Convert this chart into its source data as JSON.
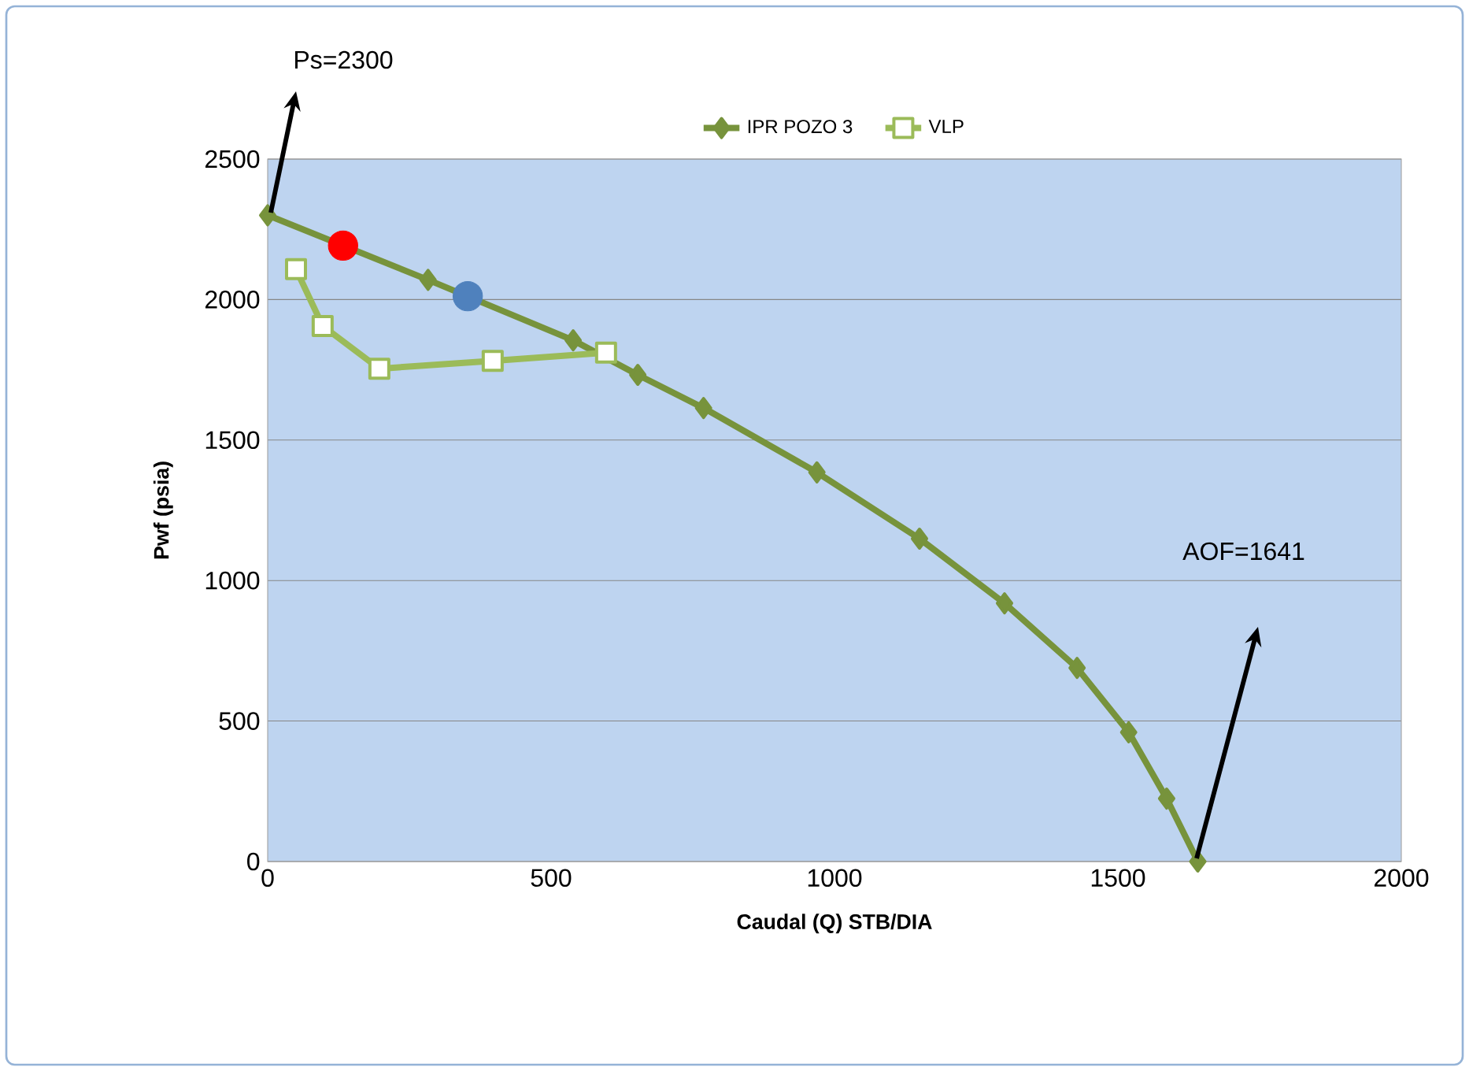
{
  "chart_data": {
    "type": "line",
    "xlabel": "Caudal (Q) STB/DIA",
    "ylabel": "Pwf (psia)",
    "xlim": [
      0,
      2000
    ],
    "xticks": [
      0,
      500,
      1000,
      1500,
      2000
    ],
    "ylim": [
      0,
      2500
    ],
    "yticks": [
      0,
      500,
      1000,
      1500,
      2000,
      2500
    ],
    "grid": "y",
    "legend": "top",
    "series": [
      {
        "name": "IPR POZO 3",
        "color": "#77933c",
        "marker": "diamond",
        "x": [
          0,
          283,
          539,
          653,
          769,
          969,
          1150,
          1300,
          1428,
          1519,
          1586,
          1641
        ],
        "values": [
          2300,
          2070,
          1855,
          1732,
          1614,
          1385,
          1149,
          919,
          689,
          460,
          224,
          0
        ]
      },
      {
        "name": "VLP",
        "color": "#9bbb59",
        "marker": "square",
        "x": [
          50,
          97,
          197,
          397,
          597
        ],
        "values": [
          2108,
          1906,
          1754,
          1782,
          1811
        ]
      },
      {
        "type": "scatter",
        "color": "#ff0000",
        "marker": "circle",
        "x": [
          133
        ],
        "values": [
          2192
        ]
      },
      {
        "type": "scatter",
        "color": "#4f81bd",
        "marker": "circle",
        "x": [
          353
        ],
        "values": [
          2012
        ]
      }
    ],
    "annotations": [
      "Ps=2300",
      "AOF=1641"
    ]
  }
}
